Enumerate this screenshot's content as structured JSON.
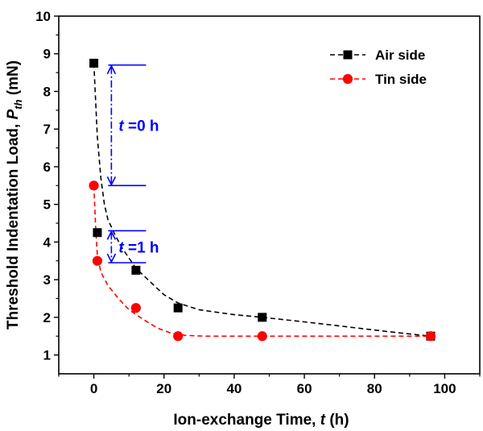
{
  "chart_data": {
    "type": "scatter",
    "xlabel": {
      "prefix": "Ion-exchange Time, ",
      "var": "t",
      "suffix": " (h)"
    },
    "ylabel": {
      "prefix": "Threshold Indentation Load, ",
      "var": "P",
      "sub": "th",
      "suffix": " (mN)"
    },
    "xlim": [
      -10,
      110
    ],
    "ylim": [
      0.5,
      10
    ],
    "xticks": [
      0,
      20,
      40,
      60,
      80,
      100
    ],
    "yticks": [
      1,
      2,
      3,
      4,
      5,
      6,
      7,
      8,
      9,
      10
    ],
    "grid": false,
    "legend_position": "top-right",
    "series": [
      {
        "name": "Air side",
        "color": "#000000",
        "marker": "square",
        "x": [
          0,
          1,
          12,
          24,
          48,
          96
        ],
        "y": [
          8.75,
          4.25,
          3.25,
          2.25,
          2.0,
          1.5
        ],
        "fit": [
          [
            0,
            8.75
          ],
          [
            1,
            6.8
          ],
          [
            2,
            5.7
          ],
          [
            3,
            5.0
          ],
          [
            4,
            4.6
          ],
          [
            6,
            4.2
          ],
          [
            8,
            3.85
          ],
          [
            12,
            3.3
          ],
          [
            16,
            2.95
          ],
          [
            20,
            2.6
          ],
          [
            24,
            2.38
          ],
          [
            30,
            2.2
          ],
          [
            40,
            2.07
          ],
          [
            48,
            2.0
          ],
          [
            60,
            1.88
          ],
          [
            72,
            1.75
          ],
          [
            84,
            1.62
          ],
          [
            96,
            1.5
          ]
        ]
      },
      {
        "name": "Tin side",
        "color": "#ff0000",
        "marker": "circle",
        "x": [
          0,
          1,
          12,
          24,
          48,
          96
        ],
        "y": [
          5.5,
          3.5,
          2.25,
          1.5,
          1.5,
          1.5
        ],
        "fit": [
          [
            0,
            5.5
          ],
          [
            0.5,
            4.4
          ],
          [
            1,
            3.65
          ],
          [
            2,
            3.2
          ],
          [
            4,
            2.85
          ],
          [
            7,
            2.5
          ],
          [
            10,
            2.2
          ],
          [
            14,
            1.95
          ],
          [
            18,
            1.72
          ],
          [
            22,
            1.58
          ],
          [
            26,
            1.52
          ],
          [
            32,
            1.5
          ],
          [
            48,
            1.5
          ],
          [
            72,
            1.5
          ],
          [
            96,
            1.5
          ]
        ]
      }
    ],
    "annotations": [
      {
        "label_var": "t",
        "label_rest": " =0 h",
        "color": "#0000ff",
        "x": 5,
        "y_top": 8.7,
        "y_bottom": 5.5,
        "style": "dash-dot"
      },
      {
        "label_var": "t",
        "label_rest": " =1 h",
        "color": "#0000ff",
        "x": 5,
        "y_top": 4.3,
        "y_bottom": 3.45,
        "style": "dash-dot"
      }
    ]
  }
}
